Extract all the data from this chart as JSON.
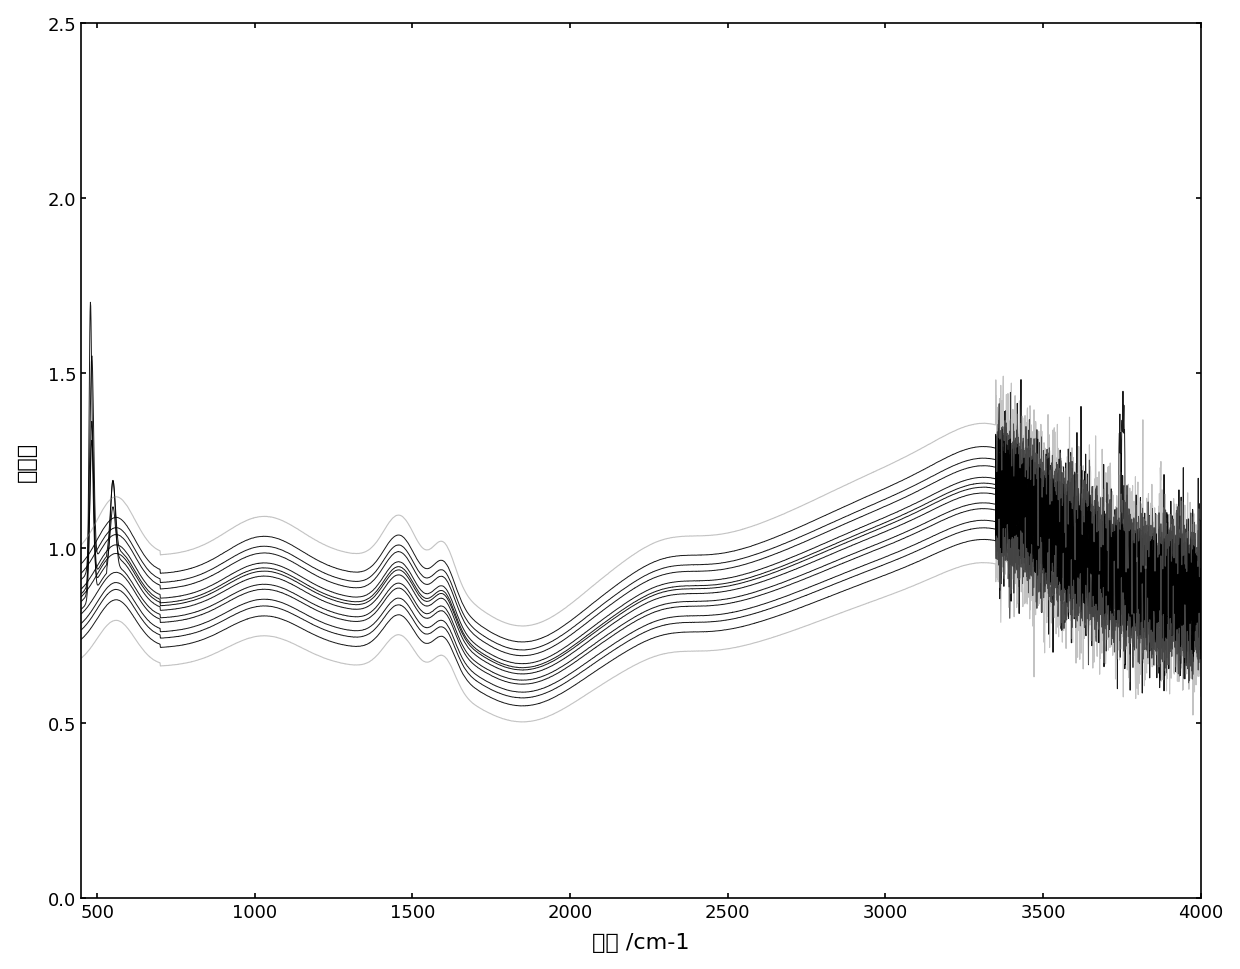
{
  "title": "",
  "xlabel": "波数 /cm-1",
  "ylabel": "吸光度",
  "xlim": [
    450,
    4000
  ],
  "ylim": [
    0,
    2.5
  ],
  "xticks": [
    500,
    1000,
    1500,
    2000,
    2500,
    3000,
    3500,
    4000
  ],
  "yticks": [
    0,
    0.5,
    1.0,
    1.5,
    2.0,
    2.5
  ],
  "n_spectra": 12,
  "background_color": "#ffffff",
  "line_color": "#000000",
  "line_alpha": 0.9,
  "line_width": 0.7,
  "figsize": [
    12.4,
    9.7
  ],
  "dpi": 100
}
